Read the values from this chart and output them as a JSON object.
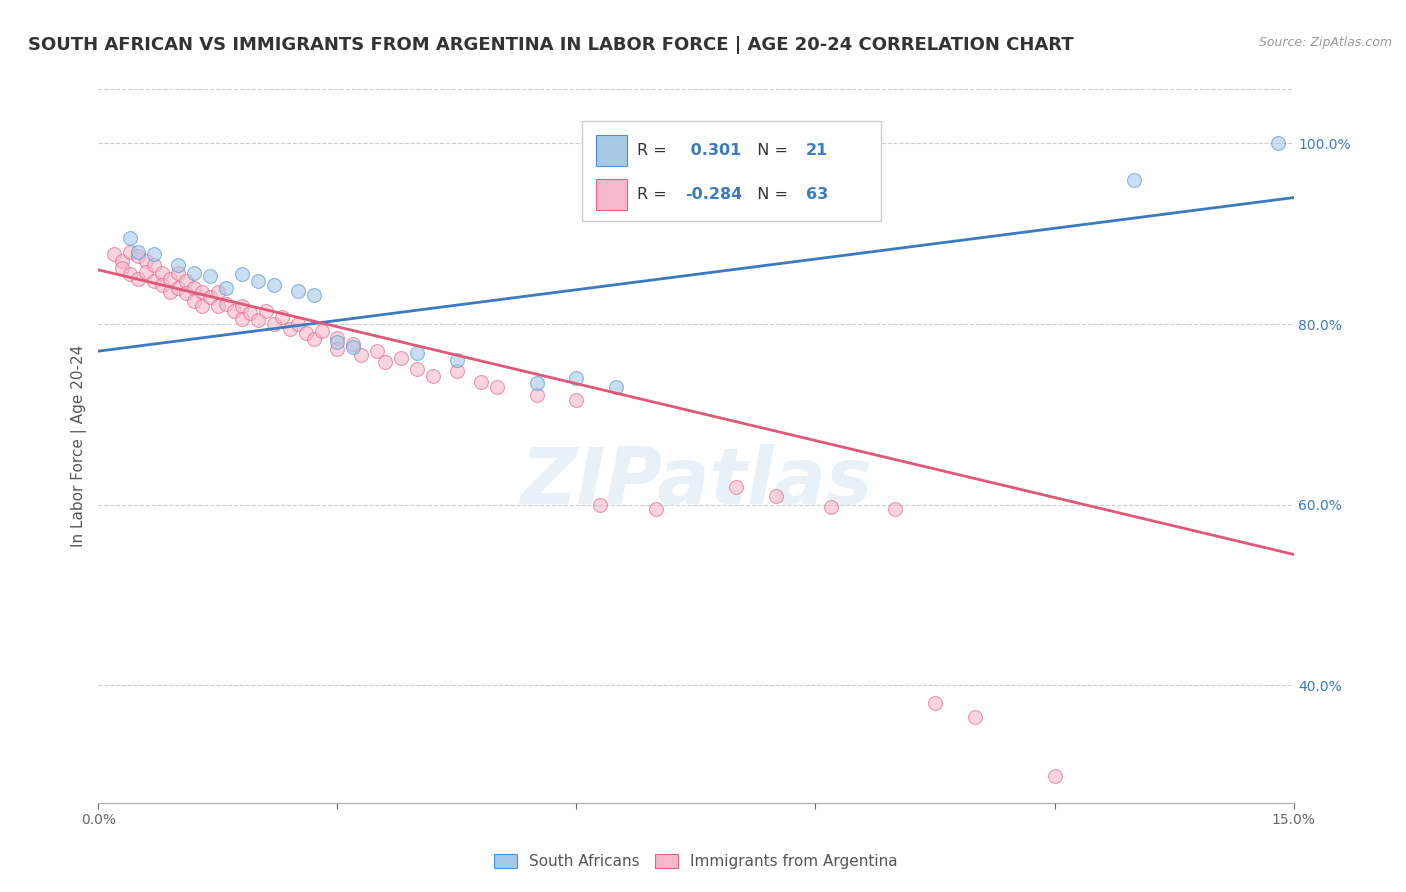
{
  "title": "SOUTH AFRICAN VS IMMIGRANTS FROM ARGENTINA IN LABOR FORCE | AGE 20-24 CORRELATION CHART",
  "source": "Source: ZipAtlas.com",
  "ylabel": "In Labor Force | Age 20-24",
  "xlim": [
    0.0,
    0.15
  ],
  "ylim": [
    0.27,
    1.06
  ],
  "xticks": [
    0.0,
    0.03,
    0.06,
    0.09,
    0.12,
    0.15
  ],
  "xticklabels": [
    "0.0%",
    "",
    "",
    "",
    "",
    "15.0%"
  ],
  "yticks": [
    0.4,
    0.6,
    0.8,
    1.0
  ],
  "yticklabels": [
    "40.0%",
    "60.0%",
    "80.0%",
    "100.0%"
  ],
  "blue_fill": "#a8c8e8",
  "blue_edge": "#4a90d9",
  "pink_fill": "#f4b8c8",
  "pink_edge": "#e06080",
  "blue_line": "#3a7abf",
  "pink_line": "#e05878",
  "R_blue": 0.301,
  "N_blue": 21,
  "R_pink": -0.284,
  "N_pink": 63,
  "blue_scatter": [
    [
      0.004,
      0.895
    ],
    [
      0.005,
      0.88
    ],
    [
      0.007,
      0.878
    ],
    [
      0.01,
      0.865
    ],
    [
      0.012,
      0.856
    ],
    [
      0.014,
      0.853
    ],
    [
      0.016,
      0.84
    ],
    [
      0.018,
      0.855
    ],
    [
      0.02,
      0.848
    ],
    [
      0.022,
      0.843
    ],
    [
      0.025,
      0.837
    ],
    [
      0.027,
      0.832
    ],
    [
      0.03,
      0.78
    ],
    [
      0.032,
      0.775
    ],
    [
      0.04,
      0.768
    ],
    [
      0.045,
      0.76
    ],
    [
      0.055,
      0.735
    ],
    [
      0.06,
      0.74
    ],
    [
      0.065,
      0.73
    ],
    [
      0.13,
      0.96
    ],
    [
      0.148,
      1.0
    ]
  ],
  "pink_scatter": [
    [
      0.002,
      0.878
    ],
    [
      0.003,
      0.87
    ],
    [
      0.003,
      0.862
    ],
    [
      0.004,
      0.88
    ],
    [
      0.004,
      0.855
    ],
    [
      0.005,
      0.875
    ],
    [
      0.005,
      0.85
    ],
    [
      0.006,
      0.87
    ],
    [
      0.006,
      0.858
    ],
    [
      0.007,
      0.865
    ],
    [
      0.007,
      0.848
    ],
    [
      0.008,
      0.857
    ],
    [
      0.008,
      0.843
    ],
    [
      0.009,
      0.85
    ],
    [
      0.009,
      0.835
    ],
    [
      0.01,
      0.856
    ],
    [
      0.01,
      0.84
    ],
    [
      0.011,
      0.848
    ],
    [
      0.011,
      0.834
    ],
    [
      0.012,
      0.84
    ],
    [
      0.012,
      0.825
    ],
    [
      0.013,
      0.835
    ],
    [
      0.013,
      0.82
    ],
    [
      0.014,
      0.83
    ],
    [
      0.015,
      0.835
    ],
    [
      0.015,
      0.82
    ],
    [
      0.016,
      0.822
    ],
    [
      0.017,
      0.814
    ],
    [
      0.018,
      0.82
    ],
    [
      0.018,
      0.806
    ],
    [
      0.019,
      0.812
    ],
    [
      0.02,
      0.805
    ],
    [
      0.021,
      0.815
    ],
    [
      0.022,
      0.8
    ],
    [
      0.023,
      0.808
    ],
    [
      0.024,
      0.795
    ],
    [
      0.025,
      0.8
    ],
    [
      0.026,
      0.79
    ],
    [
      0.027,
      0.783
    ],
    [
      0.028,
      0.792
    ],
    [
      0.03,
      0.785
    ],
    [
      0.03,
      0.772
    ],
    [
      0.032,
      0.778
    ],
    [
      0.033,
      0.766
    ],
    [
      0.035,
      0.77
    ],
    [
      0.036,
      0.758
    ],
    [
      0.038,
      0.762
    ],
    [
      0.04,
      0.75
    ],
    [
      0.042,
      0.742
    ],
    [
      0.045,
      0.748
    ],
    [
      0.048,
      0.736
    ],
    [
      0.05,
      0.73
    ],
    [
      0.055,
      0.722
    ],
    [
      0.06,
      0.716
    ],
    [
      0.063,
      0.6
    ],
    [
      0.07,
      0.595
    ],
    [
      0.08,
      0.62
    ],
    [
      0.085,
      0.61
    ],
    [
      0.092,
      0.598
    ],
    [
      0.1,
      0.595
    ],
    [
      0.105,
      0.38
    ],
    [
      0.11,
      0.365
    ],
    [
      0.12,
      0.3
    ]
  ],
  "blue_trend": [
    0.0,
    0.15,
    0.77,
    0.94
  ],
  "pink_trend": [
    0.0,
    0.15,
    0.86,
    0.545
  ],
  "watermark": "ZIPatlas",
  "legend_labels": [
    "South Africans",
    "Immigrants from Argentina"
  ],
  "grid_color": "#cccccc",
  "bg_color": "#ffffff",
  "title_fontsize": 13,
  "axis_label_fontsize": 11,
  "tick_fontsize": 10,
  "scatter_size": 100,
  "scatter_alpha": 0.6
}
